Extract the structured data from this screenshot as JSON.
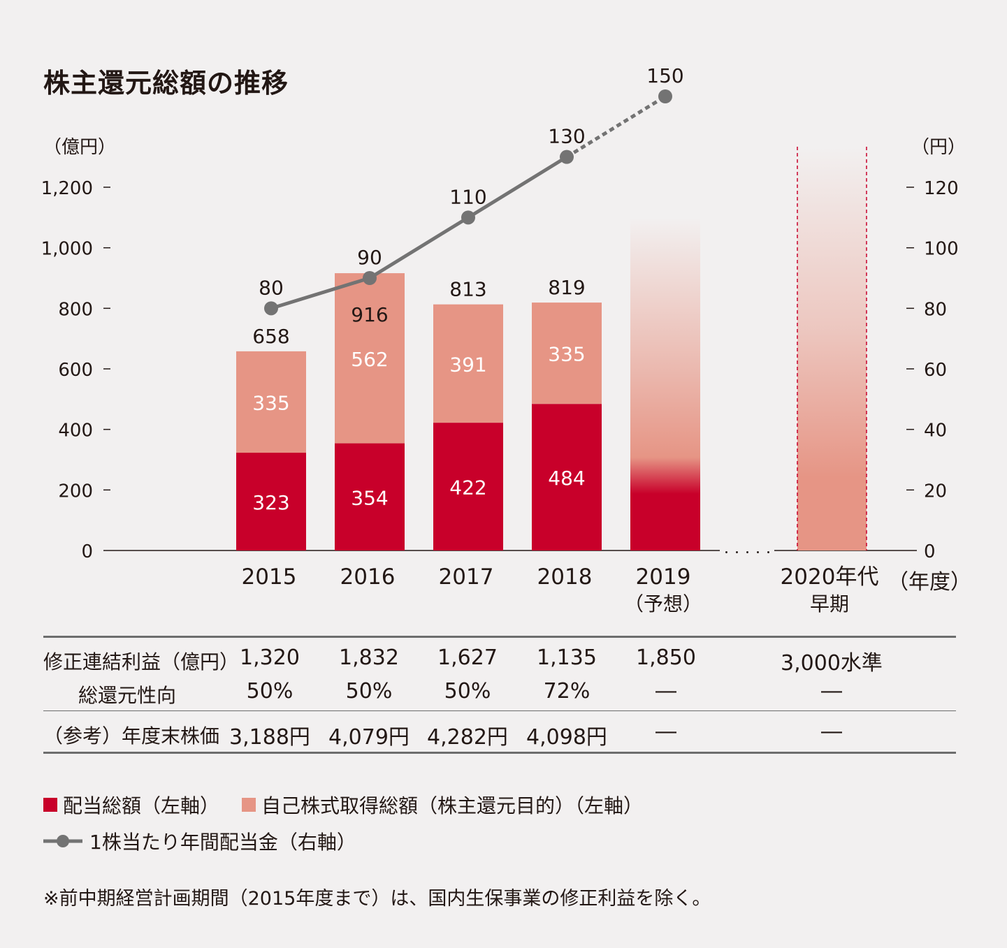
{
  "title": "株主還元総額の推移",
  "left_unit": "（億円）",
  "right_unit": "（円）",
  "x_unit": "（年度）",
  "colors": {
    "dividend": "#c8002a",
    "buyback": "#e69585",
    "line": "#737373",
    "table_rule": "#6d6d6d"
  },
  "chart_data": {
    "type": "bar",
    "stacked": true,
    "categories": [
      "2015",
      "2016",
      "2017",
      "2018",
      "2019",
      "2020年代"
    ],
    "category_sublabels": [
      "",
      "",
      "",
      "",
      "（予想）",
      "早期"
    ],
    "series": [
      {
        "name": "配当総額（左軸）",
        "values": [
          323,
          354,
          422,
          484,
          null,
          null
        ]
      },
      {
        "name": "自己株式取得総額（株主還元目的）（左軸）",
        "values": [
          335,
          562,
          391,
          335,
          null,
          null
        ]
      }
    ],
    "totals": [
      658,
      916,
      813,
      819,
      null,
      null
    ],
    "line_series": {
      "name": "1株当たり年間配当金（右軸）",
      "values": [
        80,
        90,
        110,
        130,
        150,
        null
      ],
      "projected_from_index": 3
    },
    "ylim_left": [
      0,
      1200
    ],
    "yticks_left": [
      "0",
      "200",
      "400",
      "600",
      "800",
      "1,000",
      "1,200"
    ],
    "ylim_right": [
      0,
      120
    ],
    "yticks_right": [
      "0",
      "20",
      "40",
      "60",
      "80",
      "100",
      "120"
    ],
    "projection_2019_bar_top": 1100,
    "projection_2020s_bar_top": 1350,
    "gap_marker": "・・・・・"
  },
  "table": {
    "rows": [
      {
        "label": "修正連結利益（億円）",
        "values": [
          "1,320",
          "1,832",
          "1,627",
          "1,135",
          "1,850",
          "3,000水準"
        ]
      },
      {
        "label": "総還元性向",
        "values": [
          "50%",
          "50%",
          "50%",
          "72%",
          "―",
          "―"
        ]
      },
      {
        "label": "（参考）年度末株価",
        "values": [
          "3,188円",
          "4,079円",
          "4,282円",
          "4,098円",
          "―",
          "―"
        ]
      }
    ]
  },
  "legend": {
    "dividend": "配当総額（左軸）",
    "buyback": "自己株式取得総額（株主還元目的）（左軸）",
    "dps": "1株当たり年間配当金（右軸）"
  },
  "note": "※前中期経営計画期間（2015年度まで）は、国内生保事業の修正利益を除く。"
}
